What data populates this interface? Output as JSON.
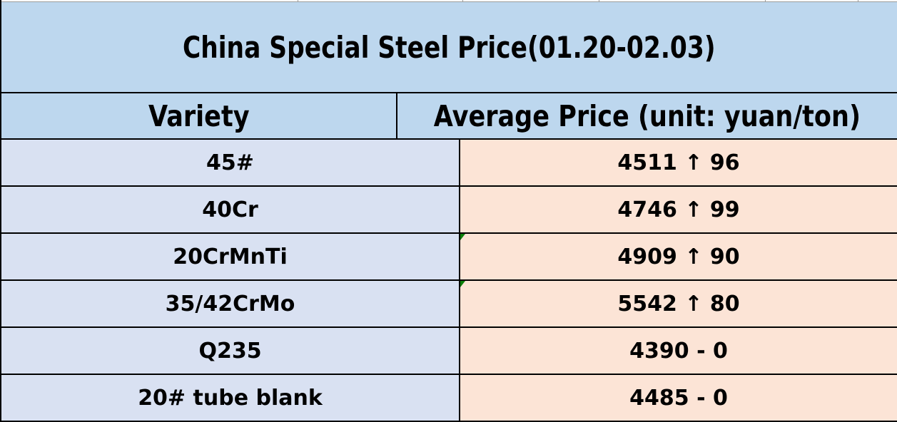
{
  "title": "China Special Steel Price(01.20-02.03)",
  "table": {
    "columns": [
      "Variety",
      "Average Price (unit: yuan/ton)"
    ],
    "rows": [
      {
        "variety": "45#",
        "price_value": 4511,
        "change_direction": "up",
        "change_symbol": "↑",
        "change": 96,
        "price_display": "4511 ↑ 96",
        "indicator": false
      },
      {
        "variety": "40Cr",
        "price_value": 4746,
        "change_direction": "up",
        "change_symbol": "↑",
        "change": 99,
        "price_display": "4746 ↑ 99",
        "indicator": false
      },
      {
        "variety": "20CrMnTi",
        "price_value": 4909,
        "change_direction": "up",
        "change_symbol": "↑",
        "change": 90,
        "price_display": "4909 ↑ 90",
        "indicator": true
      },
      {
        "variety": "35/42CrMo",
        "price_value": 5542,
        "change_direction": "up",
        "change_symbol": "↑",
        "change": 80,
        "price_display": "5542 ↑ 80",
        "indicator": true
      },
      {
        "variety": "Q235",
        "price_value": 4390,
        "change_direction": "flat",
        "change_symbol": "-",
        "change": 0,
        "price_display": "4390 - 0",
        "indicator": false
      },
      {
        "variety": "20# tube blank",
        "price_value": 4485,
        "change_direction": "flat",
        "change_symbol": "-",
        "change": 0,
        "price_display": "4485 - 0",
        "indicator": false
      }
    ]
  },
  "colors": {
    "header_bg": "#BDD7EE",
    "variety_bg": "#D9E1F2",
    "price_bg": "#FCE4D6",
    "border": "#000000",
    "text": "#000000",
    "indicator_green": "#0A7E0A",
    "gridline_gray": "#9B9B9B"
  },
  "gridline_tick_positions": [
    415,
    646,
    837,
    1070,
    1200
  ]
}
